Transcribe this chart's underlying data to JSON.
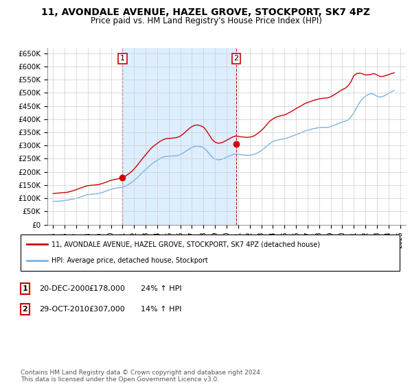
{
  "title": "11, AVONDALE AVENUE, HAZEL GROVE, STOCKPORT, SK7 4PZ",
  "subtitle": "Price paid vs. HM Land Registry's House Price Index (HPI)",
  "ylabel_ticks": [
    "£0",
    "£50K",
    "£100K",
    "£150K",
    "£200K",
    "£250K",
    "£300K",
    "£350K",
    "£400K",
    "£450K",
    "£500K",
    "£550K",
    "£600K",
    "£650K"
  ],
  "ytick_values": [
    0,
    50000,
    100000,
    150000,
    200000,
    250000,
    300000,
    350000,
    400000,
    450000,
    500000,
    550000,
    600000,
    650000
  ],
  "xlim_start": 1994.5,
  "xlim_end": 2025.5,
  "ylim": [
    0,
    670000
  ],
  "hpi_color": "#7bb3e0",
  "price_color": "#cc0000",
  "shading_color": "#ddeeff",
  "annotation_box_color": "#cc0000",
  "background_color": "#ffffff",
  "grid_color": "#cccccc",
  "sale1_x": 2001.0,
  "sale1_y": 178000,
  "sale1_date": "20-DEC-2000",
  "sale1_price": "£178,000",
  "sale1_hpi": "24% ↑ HPI",
  "sale2_x": 2010.83,
  "sale2_y": 307000,
  "sale2_date": "29-OCT-2010",
  "sale2_price": "£307,000",
  "sale2_hpi": "14% ↑ HPI",
  "legend_line1": "11, AVONDALE AVENUE, HAZEL GROVE, STOCKPORT, SK7 4PZ (detached house)",
  "legend_line2": "HPI: Average price, detached house, Stockport",
  "footnote": "Contains HM Land Registry data © Crown copyright and database right 2024.\nThis data is licensed under the Open Government Licence v3.0.",
  "hpi_data_x": [
    1995,
    1995.25,
    1995.5,
    1995.75,
    1996,
    1996.25,
    1996.5,
    1996.75,
    1997,
    1997.25,
    1997.5,
    1997.75,
    1998,
    1998.25,
    1998.5,
    1998.75,
    1999,
    1999.25,
    1999.5,
    1999.75,
    2000,
    2000.25,
    2000.5,
    2000.75,
    2001,
    2001.25,
    2001.5,
    2001.75,
    2002,
    2002.25,
    2002.5,
    2002.75,
    2003,
    2003.25,
    2003.5,
    2003.75,
    2004,
    2004.25,
    2004.5,
    2004.75,
    2005,
    2005.25,
    2005.5,
    2005.75,
    2006,
    2006.25,
    2006.5,
    2006.75,
    2007,
    2007.25,
    2007.5,
    2007.75,
    2008,
    2008.25,
    2008.5,
    2008.75,
    2009,
    2009.25,
    2009.5,
    2009.75,
    2010,
    2010.25,
    2010.5,
    2010.75,
    2011,
    2011.25,
    2011.5,
    2011.75,
    2012,
    2012.25,
    2012.5,
    2012.75,
    2013,
    2013.25,
    2013.5,
    2013.75,
    2014,
    2014.25,
    2014.5,
    2014.75,
    2015,
    2015.25,
    2015.5,
    2015.75,
    2016,
    2016.25,
    2016.5,
    2016.75,
    2017,
    2017.25,
    2017.5,
    2017.75,
    2018,
    2018.25,
    2018.5,
    2018.75,
    2019,
    2019.25,
    2019.5,
    2019.75,
    2020,
    2020.25,
    2020.5,
    2020.75,
    2021,
    2021.25,
    2021.5,
    2021.75,
    2022,
    2022.25,
    2022.5,
    2022.75,
    2023,
    2023.25,
    2023.5,
    2023.75,
    2024,
    2024.25,
    2024.5
  ],
  "hpi_data_y": [
    88000,
    88500,
    89000,
    90000,
    91500,
    93000,
    95000,
    97000,
    100000,
    103000,
    107000,
    111000,
    114000,
    115000,
    116000,
    117000,
    119000,
    122000,
    126000,
    130000,
    134000,
    137000,
    139000,
    140000,
    142000,
    146000,
    152000,
    159000,
    167000,
    177000,
    188000,
    199000,
    209000,
    219000,
    229000,
    237000,
    244000,
    251000,
    256000,
    259000,
    260000,
    260000,
    261000,
    262000,
    266000,
    272000,
    279000,
    286000,
    293000,
    297000,
    298000,
    296000,
    292000,
    282000,
    269000,
    256000,
    249000,
    246000,
    247000,
    251000,
    256000,
    261000,
    265000,
    268000,
    267000,
    265000,
    264000,
    263000,
    263000,
    265000,
    269000,
    274000,
    281000,
    289000,
    299000,
    308000,
    315000,
    319000,
    322000,
    324000,
    326000,
    329000,
    333000,
    337000,
    341000,
    345000,
    350000,
    355000,
    358000,
    361000,
    364000,
    366000,
    368000,
    369000,
    369000,
    369000,
    372000,
    376000,
    380000,
    385000,
    389000,
    392000,
    397000,
    408000,
    424000,
    444000,
    464000,
    477000,
    487000,
    494000,
    497000,
    494000,
    487000,
    484000,
    486000,
    491000,
    498000,
    504000,
    509000
  ],
  "price_data_x": [
    1995,
    1995.25,
    1995.5,
    1995.75,
    1996,
    1996.25,
    1996.5,
    1996.75,
    1997,
    1997.25,
    1997.5,
    1997.75,
    1998,
    1998.25,
    1998.5,
    1998.75,
    1999,
    1999.25,
    1999.5,
    1999.75,
    2000,
    2000.25,
    2000.5,
    2000.75,
    2001,
    2001.25,
    2001.5,
    2001.75,
    2002,
    2002.25,
    2002.5,
    2002.75,
    2003,
    2003.25,
    2003.5,
    2003.75,
    2004,
    2004.25,
    2004.5,
    2004.75,
    2005,
    2005.25,
    2005.5,
    2005.75,
    2006,
    2006.25,
    2006.5,
    2006.75,
    2007,
    2007.25,
    2007.5,
    2007.75,
    2008,
    2008.25,
    2008.5,
    2008.75,
    2009,
    2009.25,
    2009.5,
    2009.75,
    2010,
    2010.25,
    2010.5,
    2010.75,
    2011,
    2011.25,
    2011.5,
    2011.75,
    2012,
    2012.25,
    2012.5,
    2012.75,
    2013,
    2013.25,
    2013.5,
    2013.75,
    2014,
    2014.25,
    2014.5,
    2014.75,
    2015,
    2015.25,
    2015.5,
    2015.75,
    2016,
    2016.25,
    2016.5,
    2016.75,
    2017,
    2017.25,
    2017.5,
    2017.75,
    2018,
    2018.25,
    2018.5,
    2018.75,
    2019,
    2019.25,
    2019.5,
    2019.75,
    2020,
    2020.25,
    2020.5,
    2020.75,
    2021,
    2021.25,
    2021.5,
    2021.75,
    2022,
    2022.25,
    2022.5,
    2022.75,
    2023,
    2023.25,
    2023.5,
    2023.75,
    2024,
    2024.25,
    2024.5
  ],
  "price_data_y": [
    118000,
    119000,
    120000,
    121000,
    122000,
    123000,
    126000,
    129000,
    133000,
    137000,
    141000,
    145000,
    148000,
    149000,
    150000,
    151000,
    153000,
    156000,
    160000,
    164000,
    168000,
    171000,
    173000,
    175000,
    178000,
    184000,
    192000,
    200000,
    211000,
    224000,
    238000,
    252000,
    265000,
    278000,
    291000,
    300000,
    308000,
    316000,
    322000,
    326000,
    327000,
    328000,
    329000,
    331000,
    336000,
    344000,
    354000,
    364000,
    372000,
    377000,
    378000,
    375000,
    370000,
    357000,
    340000,
    323000,
    313000,
    309000,
    310000,
    314000,
    320000,
    326000,
    332000,
    336000,
    335000,
    333000,
    332000,
    331000,
    332000,
    334000,
    340000,
    348000,
    357000,
    368000,
    381000,
    393000,
    401000,
    407000,
    411000,
    414000,
    416000,
    421000,
    427000,
    433000,
    440000,
    446000,
    452000,
    459000,
    463000,
    467000,
    471000,
    474000,
    477000,
    479000,
    480000,
    481000,
    485000,
    491000,
    498000,
    505000,
    512000,
    517000,
    526000,
    542000,
    565000,
    573000,
    575000,
    572000,
    568000,
    568000,
    570000,
    573000,
    568000,
    562000,
    562000,
    565000,
    569000,
    573000,
    576000
  ]
}
